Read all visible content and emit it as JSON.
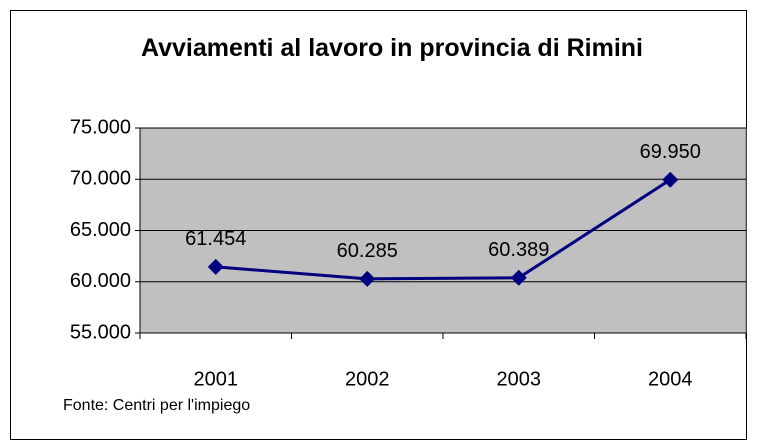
{
  "chart_data": {
    "type": "line",
    "title": "Avviamenti al lavoro in provincia di Rimini",
    "source": "Fonte: Centri per l'impiego",
    "categories": [
      "2001",
      "2002",
      "2003",
      "2004"
    ],
    "series": [
      {
        "color": "#000080",
        "values": [
          61454,
          60285,
          60389,
          69950
        ],
        "value_labels": [
          "61.454",
          "60.285",
          "60.389",
          "69.950"
        ]
      }
    ],
    "ylim": [
      55000,
      75000
    ],
    "yticks": [
      {
        "value": 55000,
        "label": "55.000"
      },
      {
        "value": 60000,
        "label": "60.000"
      },
      {
        "value": 65000,
        "label": "65.000"
      },
      {
        "value": 70000,
        "label": "70.000"
      },
      {
        "value": 75000,
        "label": "75.000"
      }
    ],
    "grid": true
  }
}
